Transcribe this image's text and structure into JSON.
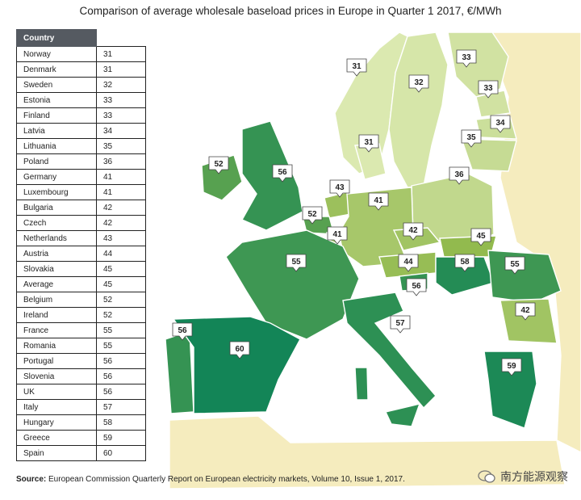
{
  "chart_data": {
    "type": "table",
    "title": "Comparison of average wholesale baseload prices in Europe in Quarter 1 2017, €/MWh",
    "header": "Country",
    "rows": [
      {
        "country": "Norway",
        "value": 31
      },
      {
        "country": "Denmark",
        "value": 31
      },
      {
        "country": "Sweden",
        "value": 32
      },
      {
        "country": "Estonia",
        "value": 33
      },
      {
        "country": "Finland",
        "value": 33
      },
      {
        "country": "Latvia",
        "value": 34
      },
      {
        "country": "Lithuania",
        "value": 35
      },
      {
        "country": "Poland",
        "value": 36
      },
      {
        "country": "Germany",
        "value": 41
      },
      {
        "country": "Luxembourg",
        "value": 41
      },
      {
        "country": "Bulgaria",
        "value": 42
      },
      {
        "country": "Czech",
        "value": 42
      },
      {
        "country": "Netherlands",
        "value": 43
      },
      {
        "country": "Austria",
        "value": 44
      },
      {
        "country": "Slovakia",
        "value": 45
      },
      {
        "country": "Average",
        "value": 45
      },
      {
        "country": "Belgium",
        "value": 52
      },
      {
        "country": "Ireland",
        "value": 52
      },
      {
        "country": "France",
        "value": 55
      },
      {
        "country": "Romania",
        "value": 55
      },
      {
        "country": "Portugal",
        "value": 56
      },
      {
        "country": "Slovenia",
        "value": 56
      },
      {
        "country": "UK",
        "value": 56
      },
      {
        "country": "Italy",
        "value": 57
      },
      {
        "country": "Hungary",
        "value": 58
      },
      {
        "country": "Greece",
        "value": 59
      },
      {
        "country": "Spain",
        "value": 60
      }
    ],
    "map_labels": [
      {
        "country": "Norway",
        "value": "31"
      },
      {
        "country": "Sweden",
        "value": "32"
      },
      {
        "country": "Finland",
        "value": "33"
      },
      {
        "country": "Estonia",
        "value": "33"
      },
      {
        "country": "Latvia",
        "value": "34"
      },
      {
        "country": "Lithuania",
        "value": "35"
      },
      {
        "country": "Denmark",
        "value": "31"
      },
      {
        "country": "Poland",
        "value": "36"
      },
      {
        "country": "Ireland",
        "value": "52"
      },
      {
        "country": "UK",
        "value": "56"
      },
      {
        "country": "Netherlands",
        "value": "43"
      },
      {
        "country": "Germany",
        "value": "41"
      },
      {
        "country": "Belgium",
        "value": "52"
      },
      {
        "country": "Luxembourg",
        "value": "41"
      },
      {
        "country": "Czech",
        "value": "42"
      },
      {
        "country": "Slovakia",
        "value": "45"
      },
      {
        "country": "France",
        "value": "55"
      },
      {
        "country": "Austria",
        "value": "44"
      },
      {
        "country": "Hungary",
        "value": "58"
      },
      {
        "country": "Romania",
        "value": "55"
      },
      {
        "country": "Slovenia",
        "value": "56"
      },
      {
        "country": "Bulgaria",
        "value": "42"
      },
      {
        "country": "Portugal",
        "value": "56"
      },
      {
        "country": "Spain",
        "value": "60"
      },
      {
        "country": "Italy",
        "value": "57"
      },
      {
        "country": "Greece",
        "value": "59"
      }
    ],
    "color_scale": {
      "low": "#dbe9b0",
      "mid": "#8fb84a",
      "high": "#138557",
      "no_data": "#f5ecbe"
    }
  },
  "source_label": "Source:",
  "source_text": " European Commission Quarterly Report on European electricity markets, Volume 10, Issue 1, 2017.",
  "brand": "南方能源观察"
}
